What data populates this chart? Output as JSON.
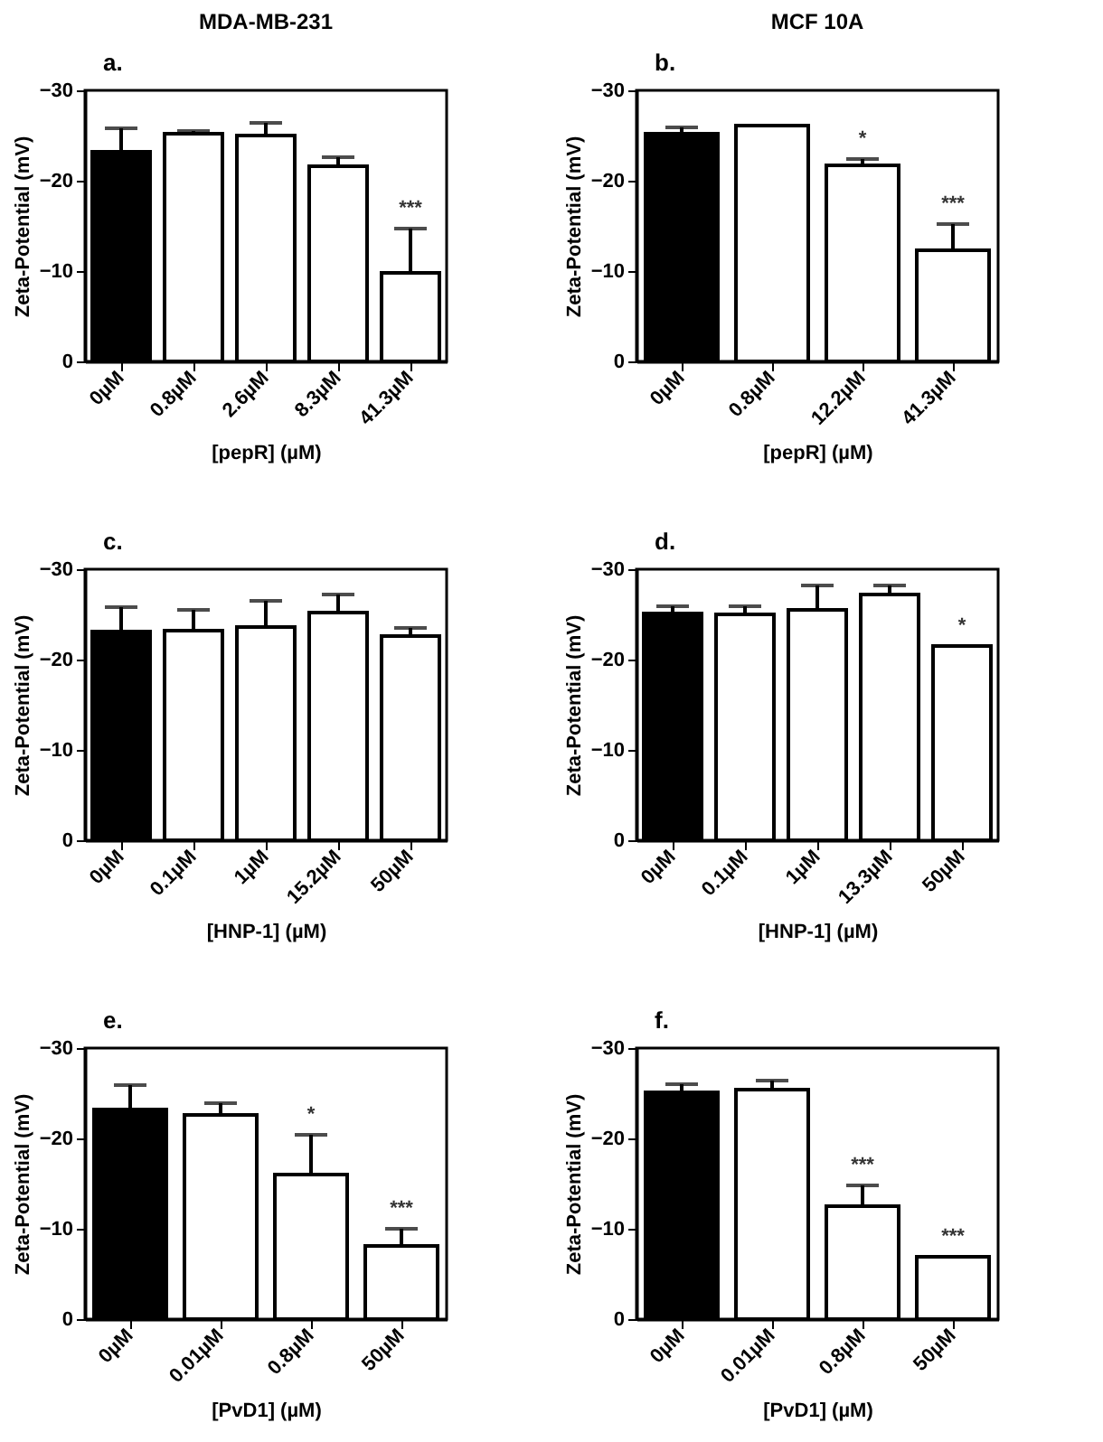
{
  "chart_data": [
    {
      "type": "bar",
      "title": "MDA-MB-231",
      "xlabel": "[pepR] (µM)",
      "ylabel": "Zeta-Potential (mV)",
      "categories": [
        "0µM",
        "0.8µM",
        "2.6µM",
        "8.3µM",
        "41.3µM"
      ],
      "values": [
        -23.2,
        -25.2,
        -25.0,
        -21.6,
        -9.8
      ],
      "errors": [
        [
          -25.8,
          -23.2
        ],
        [
          -25.5,
          -25.2
        ],
        [
          -26.4,
          -25.0
        ],
        [
          -22.6,
          -21.6
        ],
        [
          -14.7,
          -9.8
        ]
      ],
      "colors": [
        "#000000",
        "#ffffff",
        "#ffffff",
        "#ffffff",
        "#ffffff"
      ],
      "ylim": [
        0,
        -30
      ],
      "yticks": [
        0,
        -10,
        -20,
        -30
      ],
      "grid": false,
      "annotations": [
        "a.",
        {
          "text": "***",
          "x": "41.3µM",
          "y": -14.7
        }
      ]
    },
    {
      "type": "bar",
      "title": "MCF 10A",
      "xlabel": "[pepR] (µM)",
      "ylabel": "Zeta-Potential (mV)",
      "categories": [
        "0µM",
        "0.8µM",
        "12.2µM",
        "41.3µM"
      ],
      "values": [
        -25.2,
        -26.1,
        -21.7,
        -12.3
      ],
      "errors": [
        [
          -25.9,
          -25.2
        ],
        null,
        [
          -22.4,
          -21.7
        ],
        [
          -15.2,
          -12.3
        ]
      ],
      "colors": [
        "#000000",
        "#ffffff",
        "#ffffff",
        "#ffffff"
      ],
      "ylim": [
        0,
        -30
      ],
      "yticks": [
        0,
        -10,
        -20,
        -30
      ],
      "grid": false,
      "annotations": [
        "b.",
        {
          "text": "*",
          "x": "12.2µM",
          "y": -22.4
        },
        {
          "text": "***",
          "x": "41.3µM",
          "y": -15.2
        }
      ]
    },
    {
      "type": "bar",
      "xlabel": "[HNP-1] (µM)",
      "ylabel": "Zeta-Potential (mV)",
      "categories": [
        "0µM",
        "0.1µM",
        "1µM",
        "15.2µM",
        "50µM"
      ],
      "values": [
        -23.1,
        -23.2,
        -23.6,
        -25.2,
        -22.6
      ],
      "errors": [
        [
          -25.8,
          -23.1
        ],
        [
          -25.5,
          -23.2
        ],
        [
          -26.5,
          -23.6
        ],
        [
          -27.2,
          -25.2
        ],
        [
          -23.5,
          -22.6
        ]
      ],
      "colors": [
        "#000000",
        "#ffffff",
        "#ffffff",
        "#ffffff",
        "#ffffff"
      ],
      "ylim": [
        0,
        -30
      ],
      "yticks": [
        0,
        -10,
        -20,
        -30
      ],
      "grid": false,
      "annotations": [
        "c."
      ]
    },
    {
      "type": "bar",
      "xlabel": "[HNP-1] (µM)",
      "ylabel": "Zeta-Potential (mV)",
      "categories": [
        "0µM",
        "0.1µM",
        "1µM",
        "13.3µM",
        "50µM"
      ],
      "values": [
        -25.1,
        -25.0,
        -25.5,
        -27.2,
        -21.5
      ],
      "errors": [
        [
          -25.9,
          -25.1
        ],
        [
          -25.9,
          -25.0
        ],
        [
          -28.2,
          -25.5
        ],
        [
          -28.2,
          -27.2
        ],
        null
      ],
      "colors": [
        "#000000",
        "#ffffff",
        "#ffffff",
        "#ffffff",
        "#ffffff"
      ],
      "ylim": [
        0,
        -30
      ],
      "yticks": [
        0,
        -10,
        -20,
        -30
      ],
      "grid": false,
      "annotations": [
        "d.",
        {
          "text": "*",
          "x": "50µM",
          "y": -21.5
        }
      ]
    },
    {
      "type": "bar",
      "xlabel": "[PvD1] (µM)",
      "ylabel": "Zeta-Potential (mV)",
      "categories": [
        "0µM",
        "0.01µM",
        "0.8µM",
        "50µM"
      ],
      "values": [
        -23.2,
        -22.6,
        -16.0,
        -8.1
      ],
      "errors": [
        [
          -25.9,
          -23.2
        ],
        [
          -23.9,
          -22.6
        ],
        [
          -20.4,
          -16.0
        ],
        [
          -10.0,
          -8.1
        ]
      ],
      "colors": [
        "#000000",
        "#ffffff",
        "#ffffff",
        "#ffffff"
      ],
      "ylim": [
        0,
        -30
      ],
      "yticks": [
        0,
        -10,
        -20,
        -30
      ],
      "grid": false,
      "annotations": [
        "e.",
        {
          "text": "*",
          "x": "0.8µM",
          "y": -20.4
        },
        {
          "text": "***",
          "x": "50µM",
          "y": -10.0
        }
      ]
    },
    {
      "type": "bar",
      "xlabel": "[PvD1] (µM)",
      "ylabel": "Zeta-Potential (mV)",
      "categories": [
        "0µM",
        "0.01µM",
        "0.8µM",
        "50µM"
      ],
      "values": [
        -25.1,
        -25.4,
        -12.5,
        -6.9
      ],
      "errors": [
        [
          -26.0,
          -25.1
        ],
        [
          -26.4,
          -25.4
        ],
        [
          -14.8,
          -12.5
        ],
        null
      ],
      "colors": [
        "#000000",
        "#ffffff",
        "#ffffff",
        "#ffffff"
      ],
      "ylim": [
        0,
        -30
      ],
      "yticks": [
        0,
        -10,
        -20,
        -30
      ],
      "grid": false,
      "annotations": [
        "f.",
        {
          "text": "***",
          "x": "0.8µM",
          "y": -14.8
        },
        {
          "text": "***",
          "x": "50µM",
          "y": -6.9
        }
      ]
    }
  ]
}
